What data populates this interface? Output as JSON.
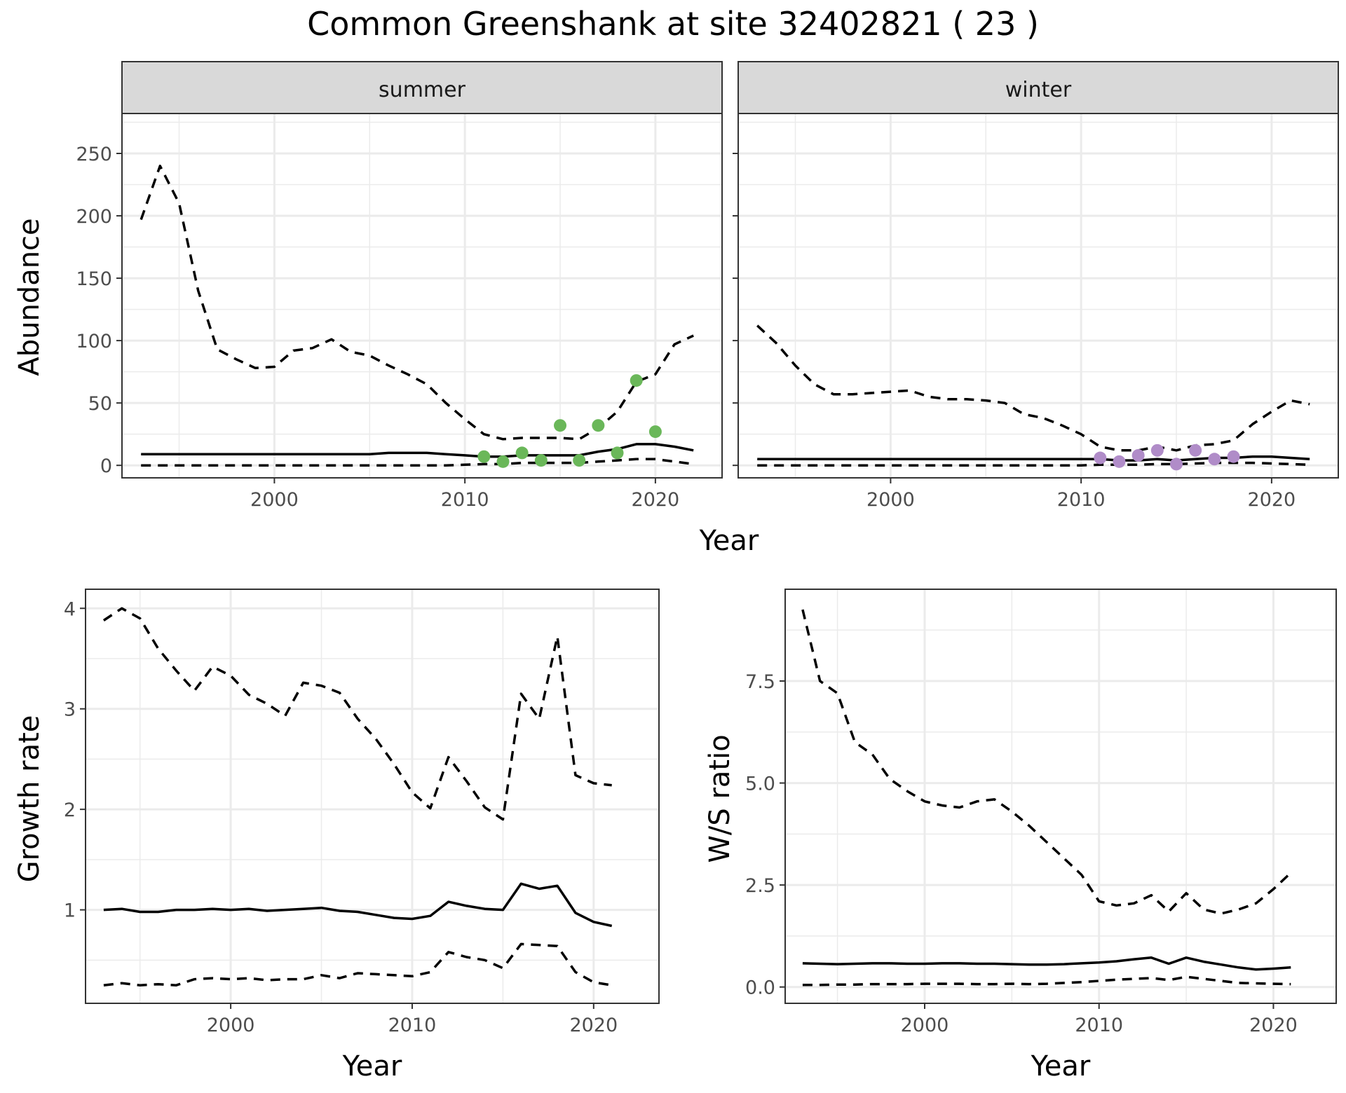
{
  "title": "Common Greenshank at site 32402821 ( 23 )",
  "colors": {
    "summer_points": "#6ab759",
    "winter_points": "#b08cc8",
    "lines": "#000000",
    "grid": "#ebebeb",
    "strip": "#d9d9d9"
  },
  "chart_data": [
    {
      "type": "line",
      "facet": "summer",
      "xlabel": "Year",
      "ylabel": "Abundance",
      "xlim": [
        1992,
        2023.5
      ],
      "ylim": [
        -10,
        282
      ],
      "xticks": [
        2000,
        2010,
        2020
      ],
      "yticks": [
        0,
        50,
        100,
        150,
        200,
        250
      ],
      "ytick_labels": [
        "0",
        "50",
        "100",
        "150",
        "200",
        "250"
      ],
      "grid": true,
      "x": [
        1993,
        1994,
        1995,
        1996,
        1997,
        1998,
        1999,
        2000,
        2001,
        2002,
        2003,
        2004,
        2005,
        2006,
        2007,
        2008,
        2009,
        2010,
        2011,
        2012,
        2013,
        2014,
        2015,
        2016,
        2017,
        2018,
        2019,
        2020,
        2021,
        2022
      ],
      "series": [
        {
          "style": "dashed",
          "values": [
            197,
            240,
            210,
            140,
            93,
            85,
            78,
            79,
            92,
            94,
            101,
            91,
            88,
            80,
            73,
            65,
            50,
            37,
            25,
            21,
            22,
            22,
            22,
            21,
            30,
            43,
            67,
            73,
            97,
            104
          ]
        },
        {
          "style": "solid",
          "values": [
            9,
            9,
            9,
            9,
            9,
            9,
            9,
            9,
            9,
            9,
            9,
            9,
            9,
            10,
            10,
            10,
            9,
            8,
            7,
            7,
            8,
            8,
            8,
            8,
            11,
            13,
            17,
            17,
            15,
            12
          ]
        },
        {
          "style": "dashed",
          "values": [
            0,
            0,
            0,
            0,
            0,
            0,
            0,
            0,
            0,
            0,
            0,
            0,
            0,
            0,
            0,
            0,
            0,
            0.5,
            1,
            1,
            2,
            2,
            2,
            2,
            3,
            4,
            5,
            5,
            3,
            1
          ]
        }
      ],
      "points": {
        "x": [
          2011,
          2012,
          2013,
          2014,
          2015,
          2016,
          2017,
          2018,
          2019,
          2020
        ],
        "y": [
          7,
          3,
          10,
          4,
          32,
          4,
          32,
          10,
          68,
          27
        ]
      }
    },
    {
      "type": "line",
      "facet": "winter",
      "xlabel": "Year",
      "ylabel": "Abundance",
      "xlim": [
        1992,
        2023.5
      ],
      "ylim": [
        -10,
        282
      ],
      "xticks": [
        2000,
        2010,
        2020
      ],
      "yticks": [
        0,
        50,
        100,
        150,
        200,
        250
      ],
      "grid": true,
      "x": [
        1993,
        1994,
        1995,
        1996,
        1997,
        1998,
        1999,
        2000,
        2001,
        2002,
        2003,
        2004,
        2005,
        2006,
        2007,
        2008,
        2009,
        2010,
        2011,
        2012,
        2013,
        2014,
        2015,
        2016,
        2017,
        2018,
        2019,
        2020,
        2021,
        2022
      ],
      "series": [
        {
          "style": "dashed",
          "values": [
            112,
            98,
            80,
            65,
            57,
            57,
            58,
            59,
            60,
            55,
            53,
            53,
            52,
            50,
            41,
            38,
            32,
            25,
            15,
            12,
            12,
            15,
            12,
            16,
            17,
            20,
            33,
            43,
            52,
            49
          ]
        },
        {
          "style": "solid",
          "values": [
            5,
            5,
            5,
            5,
            5,
            5,
            5,
            5,
            5,
            5,
            5,
            5,
            5,
            5,
            5,
            5,
            5,
            5,
            5,
            4,
            4,
            5,
            4,
            5,
            6,
            6,
            7,
            7,
            6,
            5
          ]
        },
        {
          "style": "dashed",
          "values": [
            0,
            0,
            0,
            0,
            0,
            0,
            0,
            0,
            0,
            0,
            0,
            0,
            0,
            0,
            0,
            0,
            0,
            0,
            0.5,
            0.5,
            0.5,
            1,
            1,
            1.5,
            2,
            2,
            2,
            1.5,
            1,
            0.5
          ]
        }
      ],
      "points": {
        "x": [
          2011,
          2012,
          2013,
          2014,
          2015,
          2016,
          2017,
          2018
        ],
        "y": [
          6,
          3,
          8,
          12,
          1,
          12,
          5,
          7
        ]
      }
    },
    {
      "type": "line",
      "xlabel": "Year",
      "ylabel": "Growth rate",
      "xlim": [
        1992,
        2023.6
      ],
      "ylim": [
        0.07,
        4.19
      ],
      "xticks": [
        2000,
        2010,
        2020
      ],
      "yticks": [
        1,
        2,
        3,
        4
      ],
      "ytick_labels": [
        "1",
        "2",
        "3",
        "4"
      ],
      "grid": true,
      "x": [
        1993,
        1994,
        1995,
        1996,
        1997,
        1998,
        1999,
        2000,
        2001,
        2002,
        2003,
        2004,
        2005,
        2006,
        2007,
        2008,
        2009,
        2010,
        2011,
        2012,
        2013,
        2014,
        2015,
        2016,
        2017,
        2018,
        2019,
        2020,
        2021
      ],
      "series": [
        {
          "style": "dashed",
          "values": [
            3.88,
            4.0,
            3.9,
            3.6,
            3.38,
            3.18,
            3.42,
            3.33,
            3.14,
            3.05,
            2.93,
            3.26,
            3.23,
            3.16,
            2.9,
            2.7,
            2.45,
            2.17,
            2.01,
            2.52,
            2.28,
            2.02,
            1.9,
            3.15,
            2.9,
            3.72,
            2.34,
            2.26,
            2.24
          ]
        },
        {
          "style": "solid",
          "values": [
            1.0,
            1.01,
            0.98,
            0.98,
            1.0,
            1.0,
            1.01,
            1.0,
            1.01,
            0.99,
            1.0,
            1.01,
            1.02,
            0.99,
            0.98,
            0.95,
            0.92,
            0.91,
            0.94,
            1.08,
            1.04,
            1.01,
            1.0,
            1.26,
            1.21,
            1.24,
            0.97,
            0.88,
            0.84
          ]
        },
        {
          "style": "dashed",
          "values": [
            0.25,
            0.27,
            0.25,
            0.26,
            0.25,
            0.31,
            0.32,
            0.31,
            0.32,
            0.3,
            0.31,
            0.31,
            0.35,
            0.32,
            0.37,
            0.36,
            0.35,
            0.34,
            0.38,
            0.58,
            0.53,
            0.5,
            0.42,
            0.66,
            0.65,
            0.64,
            0.38,
            0.28,
            0.25
          ]
        }
      ]
    },
    {
      "type": "line",
      "xlabel": "Year",
      "ylabel": "W/S ratio",
      "xlim": [
        1992,
        2023.6
      ],
      "ylim": [
        -0.4,
        9.75
      ],
      "xticks": [
        2000,
        2010,
        2020
      ],
      "yticks": [
        0.0,
        2.5,
        5.0,
        7.5
      ],
      "ytick_labels": [
        "0.0",
        "2.5",
        "5.0",
        "7.5"
      ],
      "grid": true,
      "x": [
        1993,
        1994,
        1995,
        1996,
        1997,
        1998,
        1999,
        2000,
        2001,
        2002,
        2003,
        2004,
        2005,
        2006,
        2007,
        2008,
        2009,
        2010,
        2011,
        2012,
        2013,
        2014,
        2015,
        2016,
        2017,
        2018,
        2019,
        2020,
        2021
      ],
      "series": [
        {
          "style": "dashed",
          "values": [
            9.25,
            7.5,
            7.2,
            6.0,
            5.7,
            5.1,
            4.8,
            4.55,
            4.45,
            4.4,
            4.55,
            4.6,
            4.3,
            3.95,
            3.55,
            3.15,
            2.75,
            2.1,
            2.0,
            2.05,
            2.25,
            1.85,
            2.3,
            1.9,
            1.8,
            1.9,
            2.05,
            2.4,
            2.8
          ]
        },
        {
          "style": "solid",
          "values": [
            0.58,
            0.57,
            0.56,
            0.57,
            0.58,
            0.58,
            0.57,
            0.57,
            0.58,
            0.58,
            0.57,
            0.57,
            0.56,
            0.55,
            0.55,
            0.56,
            0.58,
            0.6,
            0.63,
            0.68,
            0.72,
            0.57,
            0.72,
            0.62,
            0.55,
            0.48,
            0.43,
            0.45,
            0.48
          ]
        },
        {
          "style": "dashed",
          "values": [
            0.05,
            0.05,
            0.06,
            0.06,
            0.07,
            0.07,
            0.07,
            0.08,
            0.08,
            0.08,
            0.07,
            0.07,
            0.08,
            0.07,
            0.08,
            0.1,
            0.12,
            0.15,
            0.18,
            0.2,
            0.22,
            0.17,
            0.25,
            0.2,
            0.15,
            0.1,
            0.09,
            0.08,
            0.07
          ]
        }
      ]
    }
  ]
}
